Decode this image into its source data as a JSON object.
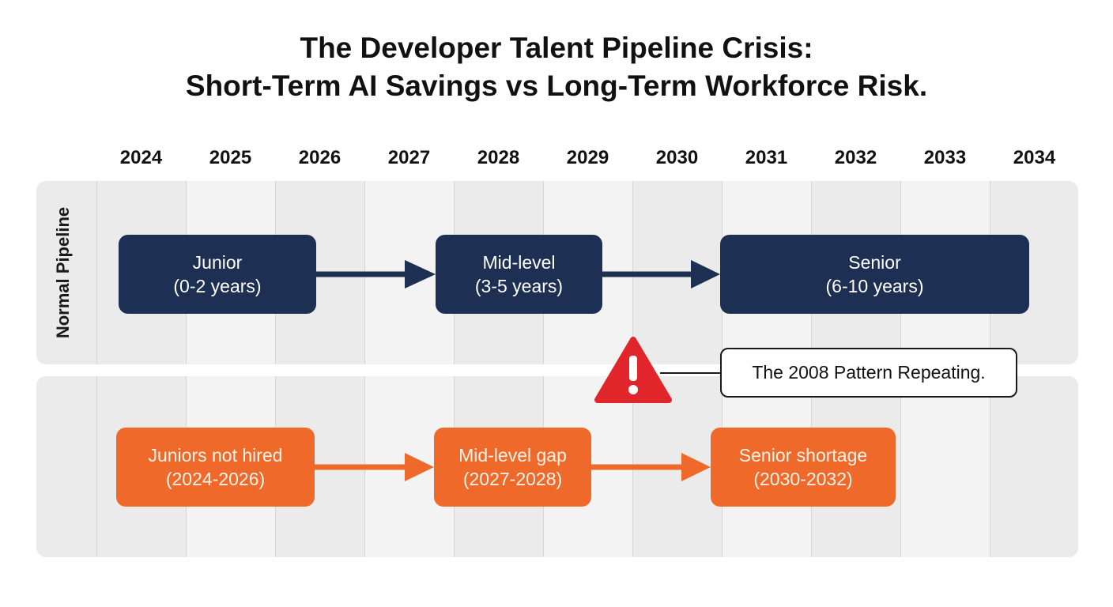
{
  "title": {
    "line1": "The Developer Talent Pipeline Crisis:",
    "line2": "Short-Term AI Savings vs Long-Term Workforce Risk."
  },
  "years": [
    "2024",
    "2025",
    "2026",
    "2027",
    "2028",
    "2029",
    "2030",
    "2031",
    "2032",
    "2033",
    "2034"
  ],
  "normal_pipeline": {
    "label": "Normal Pipeline",
    "stages": [
      {
        "title": "Junior",
        "range": "(0-2 years)"
      },
      {
        "title": "Mid-level",
        "range": "(3-5 years)"
      },
      {
        "title": "Senior",
        "range": "(6-10 years)"
      }
    ]
  },
  "crisis_pipeline": {
    "stages": [
      {
        "title": "Juniors not hired",
        "range": "(2024-2026)"
      },
      {
        "title": "Mid-level gap",
        "range": "(2027-2028)"
      },
      {
        "title": "Senior shortage",
        "range": "(2030-2032)"
      }
    ]
  },
  "warning": {
    "icon": "warning-triangle-icon",
    "text": "The 2008 Pattern Repeating."
  },
  "colors": {
    "navy": "#1d2f52",
    "orange": "#ef6a2a",
    "warning_red": "#e0262b"
  }
}
